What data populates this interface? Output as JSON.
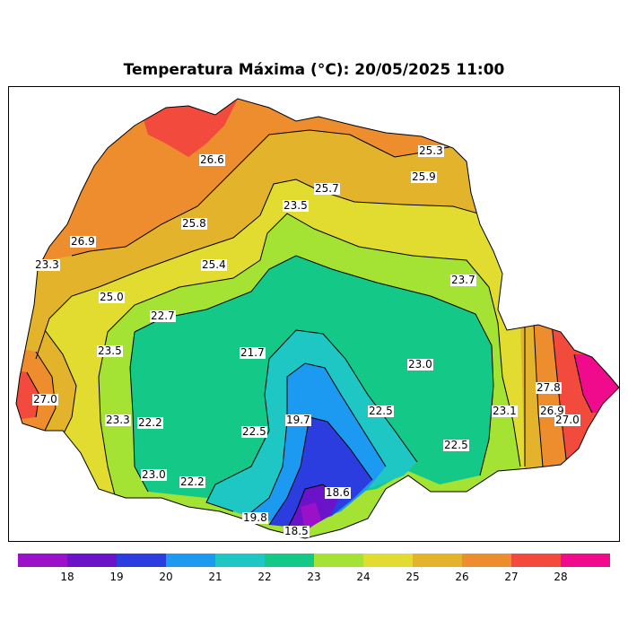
{
  "title": "Temperatura Máxima (°C): 20/05/2025 11:00",
  "colorbar": {
    "colors": [
      "#9b10c9",
      "#6b13c8",
      "#2c3de0",
      "#1c9af1",
      "#1fc7c4",
      "#14c888",
      "#a4e233",
      "#e1dc2f",
      "#e3b32b",
      "#ed8d2d",
      "#f24a3c",
      "#f00a8c"
    ],
    "ticks": [
      "18",
      "19",
      "20",
      "21",
      "22",
      "23",
      "24",
      "25",
      "26",
      "27",
      "28"
    ]
  },
  "labels": [
    {
      "text": "26.6"
    },
    {
      "text": "25.3"
    },
    {
      "text": "25.9"
    },
    {
      "text": "25.7"
    },
    {
      "text": "23.5"
    },
    {
      "text": "25.8"
    },
    {
      "text": "26.9"
    },
    {
      "text": "25.4"
    },
    {
      "text": "23.3"
    },
    {
      "text": "25.0"
    },
    {
      "text": "23.7"
    },
    {
      "text": "22.7"
    },
    {
      "text": "23.5"
    },
    {
      "text": "21.7"
    },
    {
      "text": "23.0"
    },
    {
      "text": "27.0"
    },
    {
      "text": "22.5"
    },
    {
      "text": "19.7"
    },
    {
      "text": "23.3"
    },
    {
      "text": "22.2"
    },
    {
      "text": "22.5"
    },
    {
      "text": "23.1"
    },
    {
      "text": "27.8"
    },
    {
      "text": "26.9"
    },
    {
      "text": "27.0"
    },
    {
      "text": "22.5"
    },
    {
      "text": "23.0"
    },
    {
      "text": "22.2"
    },
    {
      "text": "18.6"
    },
    {
      "text": "19.8"
    },
    {
      "text": "18.5"
    }
  ]
}
